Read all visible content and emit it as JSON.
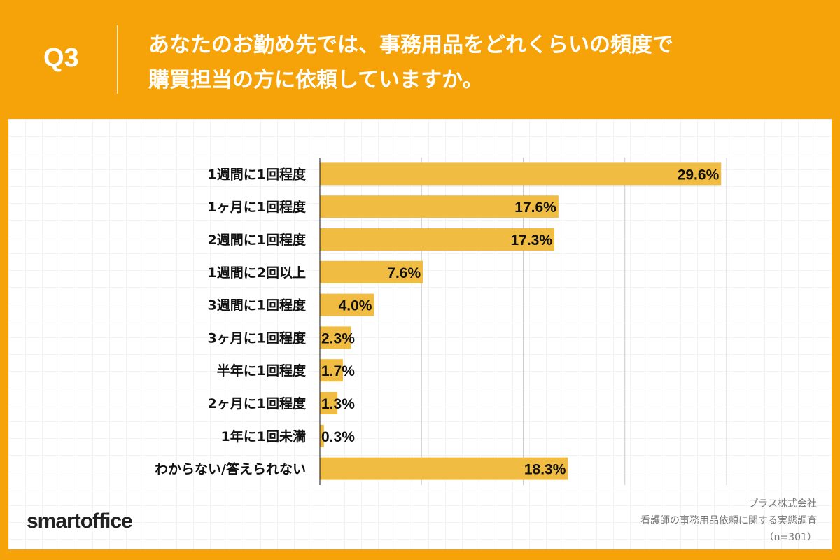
{
  "header": {
    "question_number": "Q3",
    "title_line1": "あなたのお勤め先では、事務用品をどれくらいの頻度で",
    "title_line2": "購買担当の方に依頼していますか。"
  },
  "colors": {
    "frame": "#F5A308",
    "bar": "#F0BC42",
    "grid": "#cccccc"
  },
  "chart_data": {
    "type": "bar",
    "orientation": "horizontal",
    "categories": [
      "1週間に1回程度",
      "1ヶ月に1回程度",
      "2週間に1回程度",
      "1週間に2回以上",
      "3週間に1回程度",
      "3ヶ月に1回程度",
      "半年に1回程度",
      "2ヶ月に1回程度",
      "1年に1回未満",
      "わからない/答えられない"
    ],
    "values": [
      29.6,
      17.6,
      17.3,
      7.6,
      4.0,
      2.3,
      1.7,
      1.3,
      0.3,
      18.3
    ],
    "labels": [
      "29.6%",
      "17.6%",
      "17.3%",
      "7.6%",
      "4.0%",
      "2.3%",
      "1.7%",
      "1.3%",
      "0.3%",
      "18.3%"
    ],
    "xlim": [
      0,
      30
    ],
    "gridlines": [
      7.5,
      15,
      22.5,
      30
    ],
    "grid": true
  },
  "footer": {
    "logo": "smartoffice",
    "source_company": "プラス株式会社",
    "source_survey": "看護師の事務用品依頼に関する実態調査",
    "sample_size": "（n=301）"
  }
}
